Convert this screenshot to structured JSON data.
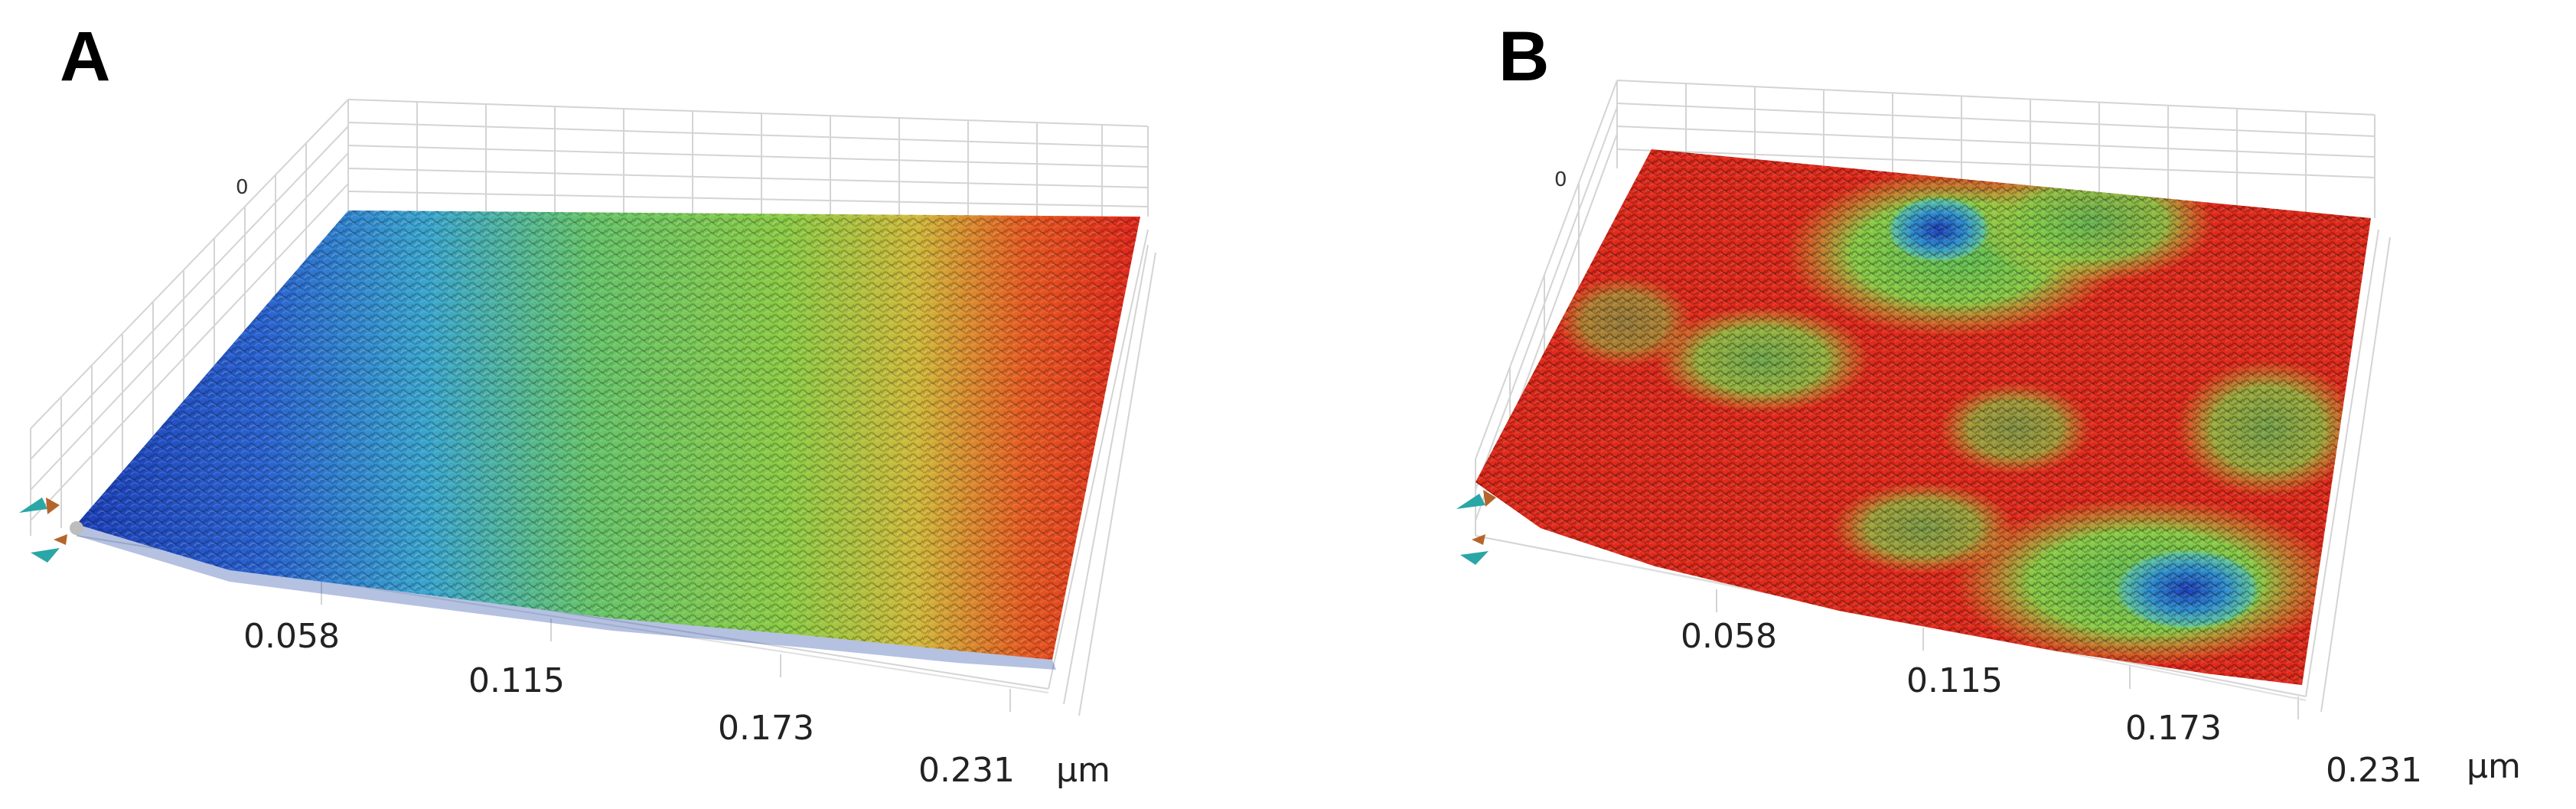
{
  "panels": [
    {
      "label": "A",
      "x_ticks": [
        "0.058",
        "0.115",
        "0.173",
        "0.231"
      ],
      "unit": "μm",
      "z_label": "0",
      "colormap": "height (blue low → red high)",
      "gradient_direction": "left-to-right"
    },
    {
      "label": "B",
      "x_ticks": [
        "0.058",
        "0.115",
        "0.173",
        "0.231"
      ],
      "unit": "μm",
      "z_label": "0",
      "colormap": "height (blue low → red high)",
      "gradient_direction": "mostly red with green/blue patches"
    }
  ],
  "colors": {
    "blue": "#1f4fc8",
    "cyan": "#3fb7d9",
    "green": "#7cc94a",
    "yellow": "#d7d23a",
    "red": "#e0241b",
    "grid": "#cfcfcf"
  }
}
